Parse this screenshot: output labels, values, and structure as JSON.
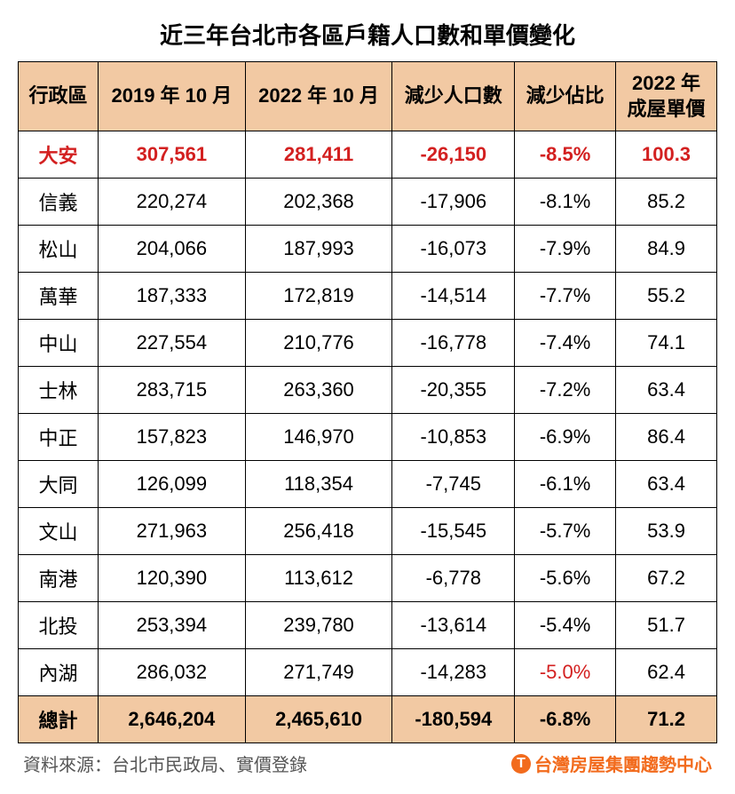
{
  "title": "近三年台北市各區戶籍人口數和單價變化",
  "columns": [
    "行政區",
    "2019 年 10 月",
    "2022 年 10 月",
    "減少人口數",
    "減少佔比",
    "2022 年\n成屋單價"
  ],
  "rows": [
    {
      "district": "大安",
      "c2019": "307,561",
      "c2022": "281,411",
      "decrease": "-26,150",
      "pct": "-8.5%",
      "price": "100.3",
      "highlight": true
    },
    {
      "district": "信義",
      "c2019": "220,274",
      "c2022": "202,368",
      "decrease": "-17,906",
      "pct": "-8.1%",
      "price": "85.2"
    },
    {
      "district": "松山",
      "c2019": "204,066",
      "c2022": "187,993",
      "decrease": "-16,073",
      "pct": "-7.9%",
      "price": "84.9"
    },
    {
      "district": "萬華",
      "c2019": "187,333",
      "c2022": "172,819",
      "decrease": "-14,514",
      "pct": "-7.7%",
      "price": "55.2"
    },
    {
      "district": "中山",
      "c2019": "227,554",
      "c2022": "210,776",
      "decrease": "-16,778",
      "pct": "-7.4%",
      "price": "74.1"
    },
    {
      "district": "士林",
      "c2019": "283,715",
      "c2022": "263,360",
      "decrease": "-20,355",
      "pct": "-7.2%",
      "price": "63.4"
    },
    {
      "district": "中正",
      "c2019": "157,823",
      "c2022": "146,970",
      "decrease": "-10,853",
      "pct": "-6.9%",
      "price": "86.4"
    },
    {
      "district": "大同",
      "c2019": "126,099",
      "c2022": "118,354",
      "decrease": "-7,745",
      "pct": "-6.1%",
      "price": "63.4"
    },
    {
      "district": "文山",
      "c2019": "271,963",
      "c2022": "256,418",
      "decrease": "-15,545",
      "pct": "-5.7%",
      "price": "53.9"
    },
    {
      "district": "南港",
      "c2019": "120,390",
      "c2022": "113,612",
      "decrease": "-6,778",
      "pct": "-5.6%",
      "price": "67.2"
    },
    {
      "district": "北投",
      "c2019": "253,394",
      "c2022": "239,780",
      "decrease": "-13,614",
      "pct": "-5.4%",
      "price": "51.7"
    },
    {
      "district": "內湖",
      "c2019": "286,032",
      "c2022": "271,749",
      "decrease": "-14,283",
      "pct": "-5.0%",
      "price": "62.4",
      "pct_red": true
    }
  ],
  "total": {
    "district": "總計",
    "c2019": "2,646,204",
    "c2022": "2,465,610",
    "decrease": "-180,594",
    "pct": "-6.8%",
    "price": "71.2"
  },
  "source": "資料來源：台北市民政局、實價登錄",
  "brand_icon": "T",
  "brand_text": "台灣房屋集團趨勢中心",
  "styling": {
    "header_bg": "#f2c9a3",
    "border_color": "#000000",
    "highlight_color": "#d32020",
    "brand_color": "#f26b1d",
    "title_fontsize": 26,
    "cell_fontsize": 22,
    "source_fontsize": 20
  }
}
